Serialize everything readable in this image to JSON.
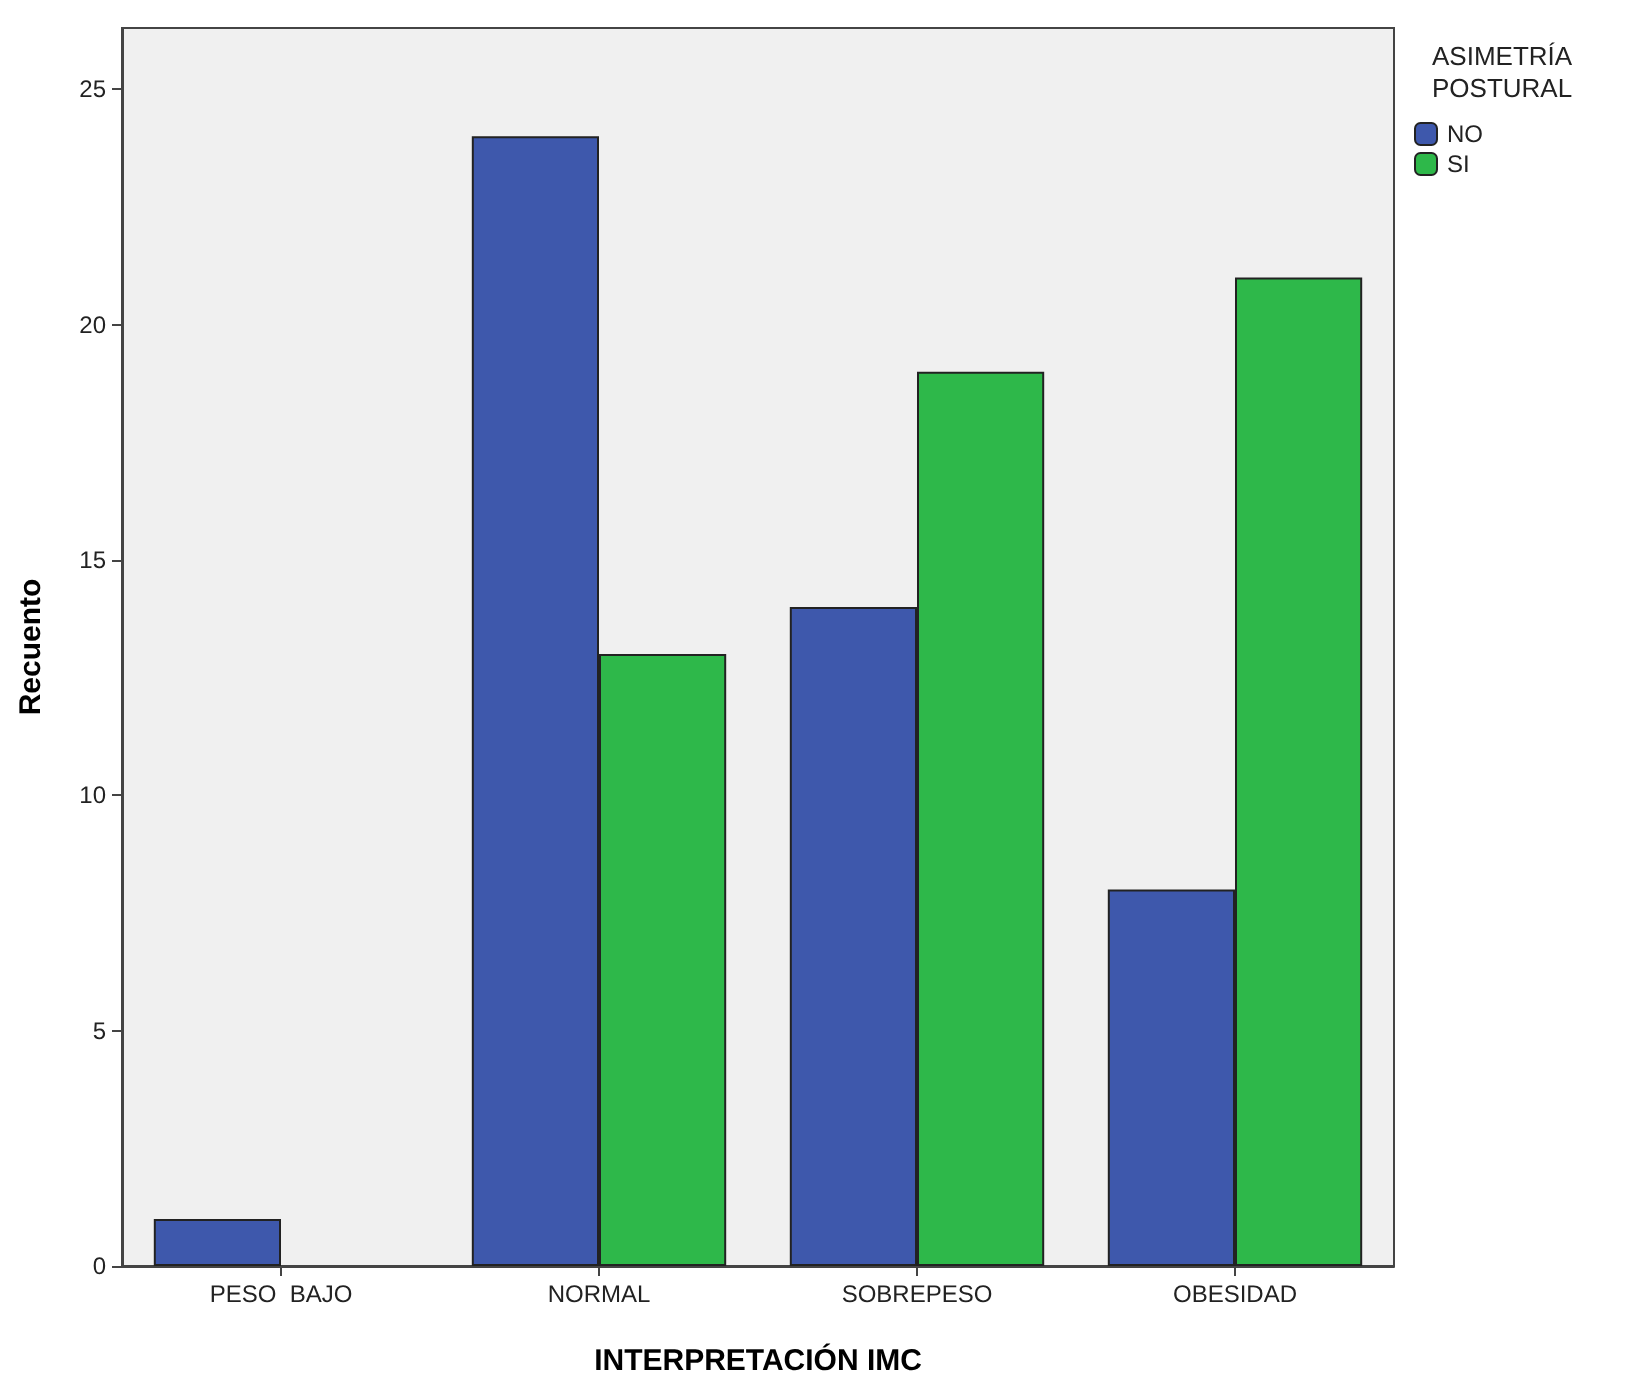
{
  "chart_data": {
    "type": "bar",
    "xlabel": "INTERPRETACIÓN IMC",
    "ylabel": "Recuento",
    "legend_title": "ASIMETRÍA POSTURAL",
    "categories": [
      "PESO  BAJO",
      "NORMAL",
      "SOBREPESO",
      "OBESIDAD"
    ],
    "series": [
      {
        "name": "NO",
        "color": "#3e58ac",
        "values": [
          1,
          24,
          14,
          8
        ]
      },
      {
        "name": "SI",
        "color": "#2eb84a",
        "values": [
          null,
          13,
          19,
          21
        ]
      }
    ],
    "ylim": [
      0,
      26.3
    ],
    "yticks": [
      0,
      5,
      10,
      15,
      20,
      25
    ],
    "grid": false,
    "legend": "top right"
  }
}
